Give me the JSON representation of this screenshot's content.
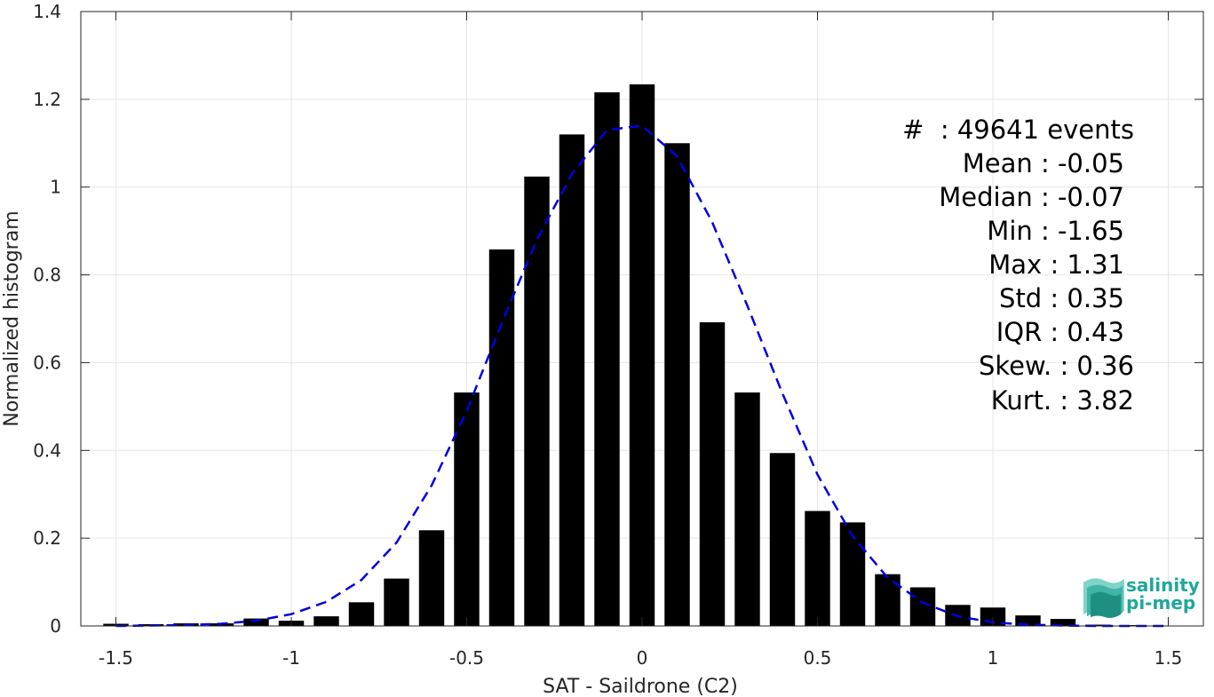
{
  "chart_data": {
    "type": "bar",
    "xlabel": "SAT - Saildrone (C2)",
    "ylabel": "Normalized histogram",
    "xlim": [
      -1.6,
      1.6
    ],
    "ylim": [
      0,
      1.4
    ],
    "xticks": [
      -1.5,
      -1,
      -0.5,
      0,
      0.5,
      1,
      1.5
    ],
    "xtick_labels": [
      "-1.5",
      "-1",
      "-0.5",
      "0",
      "0.5",
      "1",
      "1.5"
    ],
    "yticks": [
      0,
      0.2,
      0.4,
      0.6,
      0.8,
      1,
      1.2,
      1.4
    ],
    "ytick_labels": [
      "0",
      "0.2",
      "0.4",
      "0.6",
      "0.8",
      "1",
      "1.2",
      "1.4"
    ],
    "grid": true,
    "bar_color": "#000000",
    "bars": {
      "x": [
        -1.5,
        -1.4,
        -1.3,
        -1.2,
        -1.1,
        -1.0,
        -0.9,
        -0.8,
        -0.7,
        -0.6,
        -0.5,
        -0.4,
        -0.3,
        -0.2,
        -0.1,
        0.0,
        0.1,
        0.2,
        0.3,
        0.4,
        0.5,
        0.6,
        0.7,
        0.8,
        0.9,
        1.0,
        1.1,
        1.2,
        1.3,
        1.4,
        1.5
      ],
      "values": [
        0.005,
        0.004,
        0.006,
        0.006,
        0.017,
        0.012,
        0.022,
        0.054,
        0.108,
        0.218,
        0.532,
        0.858,
        1.024,
        1.12,
        1.216,
        1.234,
        1.1,
        0.692,
        0.532,
        0.394,
        0.262,
        0.236,
        0.118,
        0.088,
        0.048,
        0.042,
        0.024,
        0.016,
        0.003,
        0.002,
        0.001
      ]
    },
    "fit_curve": {
      "style": "dashed",
      "color": "#0000e0",
      "x": [
        -1.5,
        -1.4,
        -1.3,
        -1.2,
        -1.1,
        -1.0,
        -0.9,
        -0.8,
        -0.7,
        -0.6,
        -0.5,
        -0.4,
        -0.3,
        -0.2,
        -0.1,
        0.0,
        0.1,
        0.2,
        0.3,
        0.4,
        0.5,
        0.6,
        0.7,
        0.8,
        0.9,
        1.0,
        1.1,
        1.2,
        1.3,
        1.4,
        1.5
      ],
      "y": [
        0.0,
        0.001,
        0.002,
        0.005,
        0.012,
        0.027,
        0.055,
        0.105,
        0.19,
        0.32,
        0.49,
        0.69,
        0.88,
        1.03,
        1.13,
        1.14,
        1.07,
        0.92,
        0.73,
        0.53,
        0.345,
        0.205,
        0.11,
        0.053,
        0.022,
        0.008,
        0.003,
        0.001,
        0.0,
        0.0,
        0.0
      ]
    },
    "annotations": [
      "#  : 49641 events",
      "Mean : -0.05",
      "Median : -0.07",
      "Min : -1.65",
      "Max : 1.31",
      "Std : 0.35",
      "IQR : 0.43",
      "Skew. : 0.36",
      "Kurt. : 3.82"
    ]
  },
  "logo": {
    "line1": "salinity",
    "line2": "pi-mep",
    "color": "#1fa79a"
  }
}
